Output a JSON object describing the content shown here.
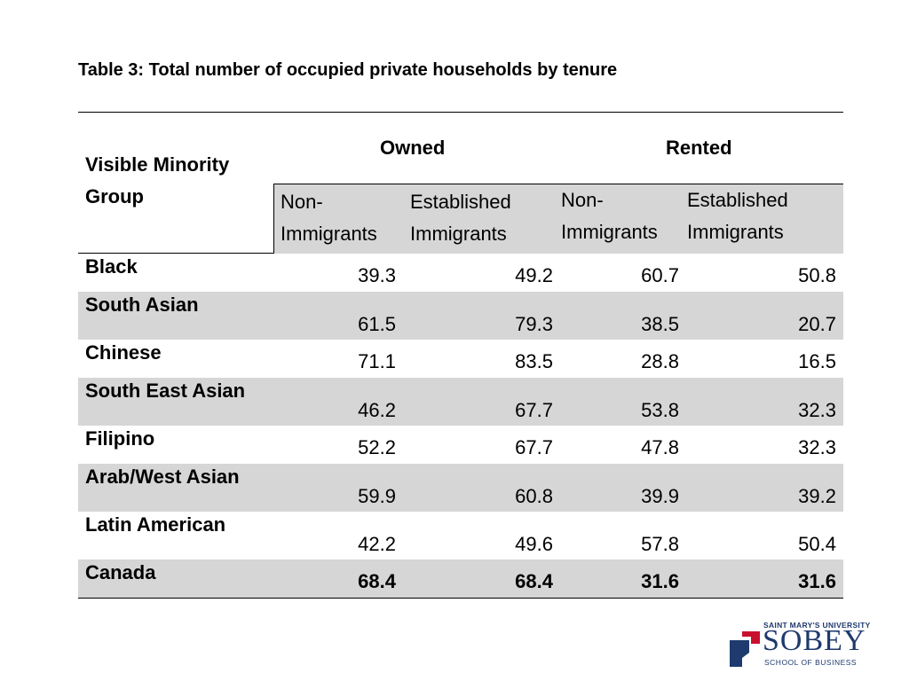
{
  "title": "Table 3: Total number of occupied private households by tenure",
  "headers": {
    "group_line1": "Visible Minority",
    "group_line2": "Group",
    "owned": "Owned",
    "rented": "Rented",
    "owned_non_line1": "Non-",
    "owned_non_line2": "Immigrants",
    "owned_est_line1": "Established",
    "owned_est_line2": "Immigrants",
    "rented_non_line1": "Non-",
    "rented_non_line2": "Immigrants",
    "rented_est_line1": "Established",
    "rented_est_line2": "Immigrants"
  },
  "rows": [
    {
      "group": "Black",
      "owned_non": "39.3",
      "owned_est": "49.2",
      "rented_non": "60.7",
      "rented_est": "50.8"
    },
    {
      "group": "South Asian",
      "owned_non": "61.5",
      "owned_est": "79.3",
      "rented_non": "38.5",
      "rented_est": "20.7"
    },
    {
      "group": "Chinese",
      "owned_non": "71.1",
      "owned_est": "83.5",
      "rented_non": "28.8",
      "rented_est": "16.5"
    },
    {
      "group": "South East Asian",
      "owned_non": "46.2",
      "owned_est": "67.7",
      "rented_non": "53.8",
      "rented_est": "32.3"
    },
    {
      "group": "Filipino",
      "owned_non": "52.2",
      "owned_est": "67.7",
      "rented_non": "47.8",
      "rented_est": "32.3"
    },
    {
      "group": "Arab/West Asian",
      "owned_non": "59.9",
      "owned_est": "60.8",
      "rented_non": "39.9",
      "rented_est": "39.2"
    },
    {
      "group": "Latin American",
      "owned_non": "42.2",
      "owned_est": "49.6",
      "rented_non": "57.8",
      "rented_est": "50.4"
    },
    {
      "group": "Canada",
      "owned_non": "68.4",
      "owned_est": "68.4",
      "rented_non": "31.6",
      "rented_est": "31.6"
    }
  ],
  "logo": {
    "university": "SAINT MARY'S UNIVERSITY",
    "name": "SOBEY",
    "school": "SCHOOL OF BUSINESS"
  },
  "colors": {
    "shade": "#d6d6d6",
    "logo_blue": "#1f3a6e",
    "logo_red": "#c8102e"
  }
}
